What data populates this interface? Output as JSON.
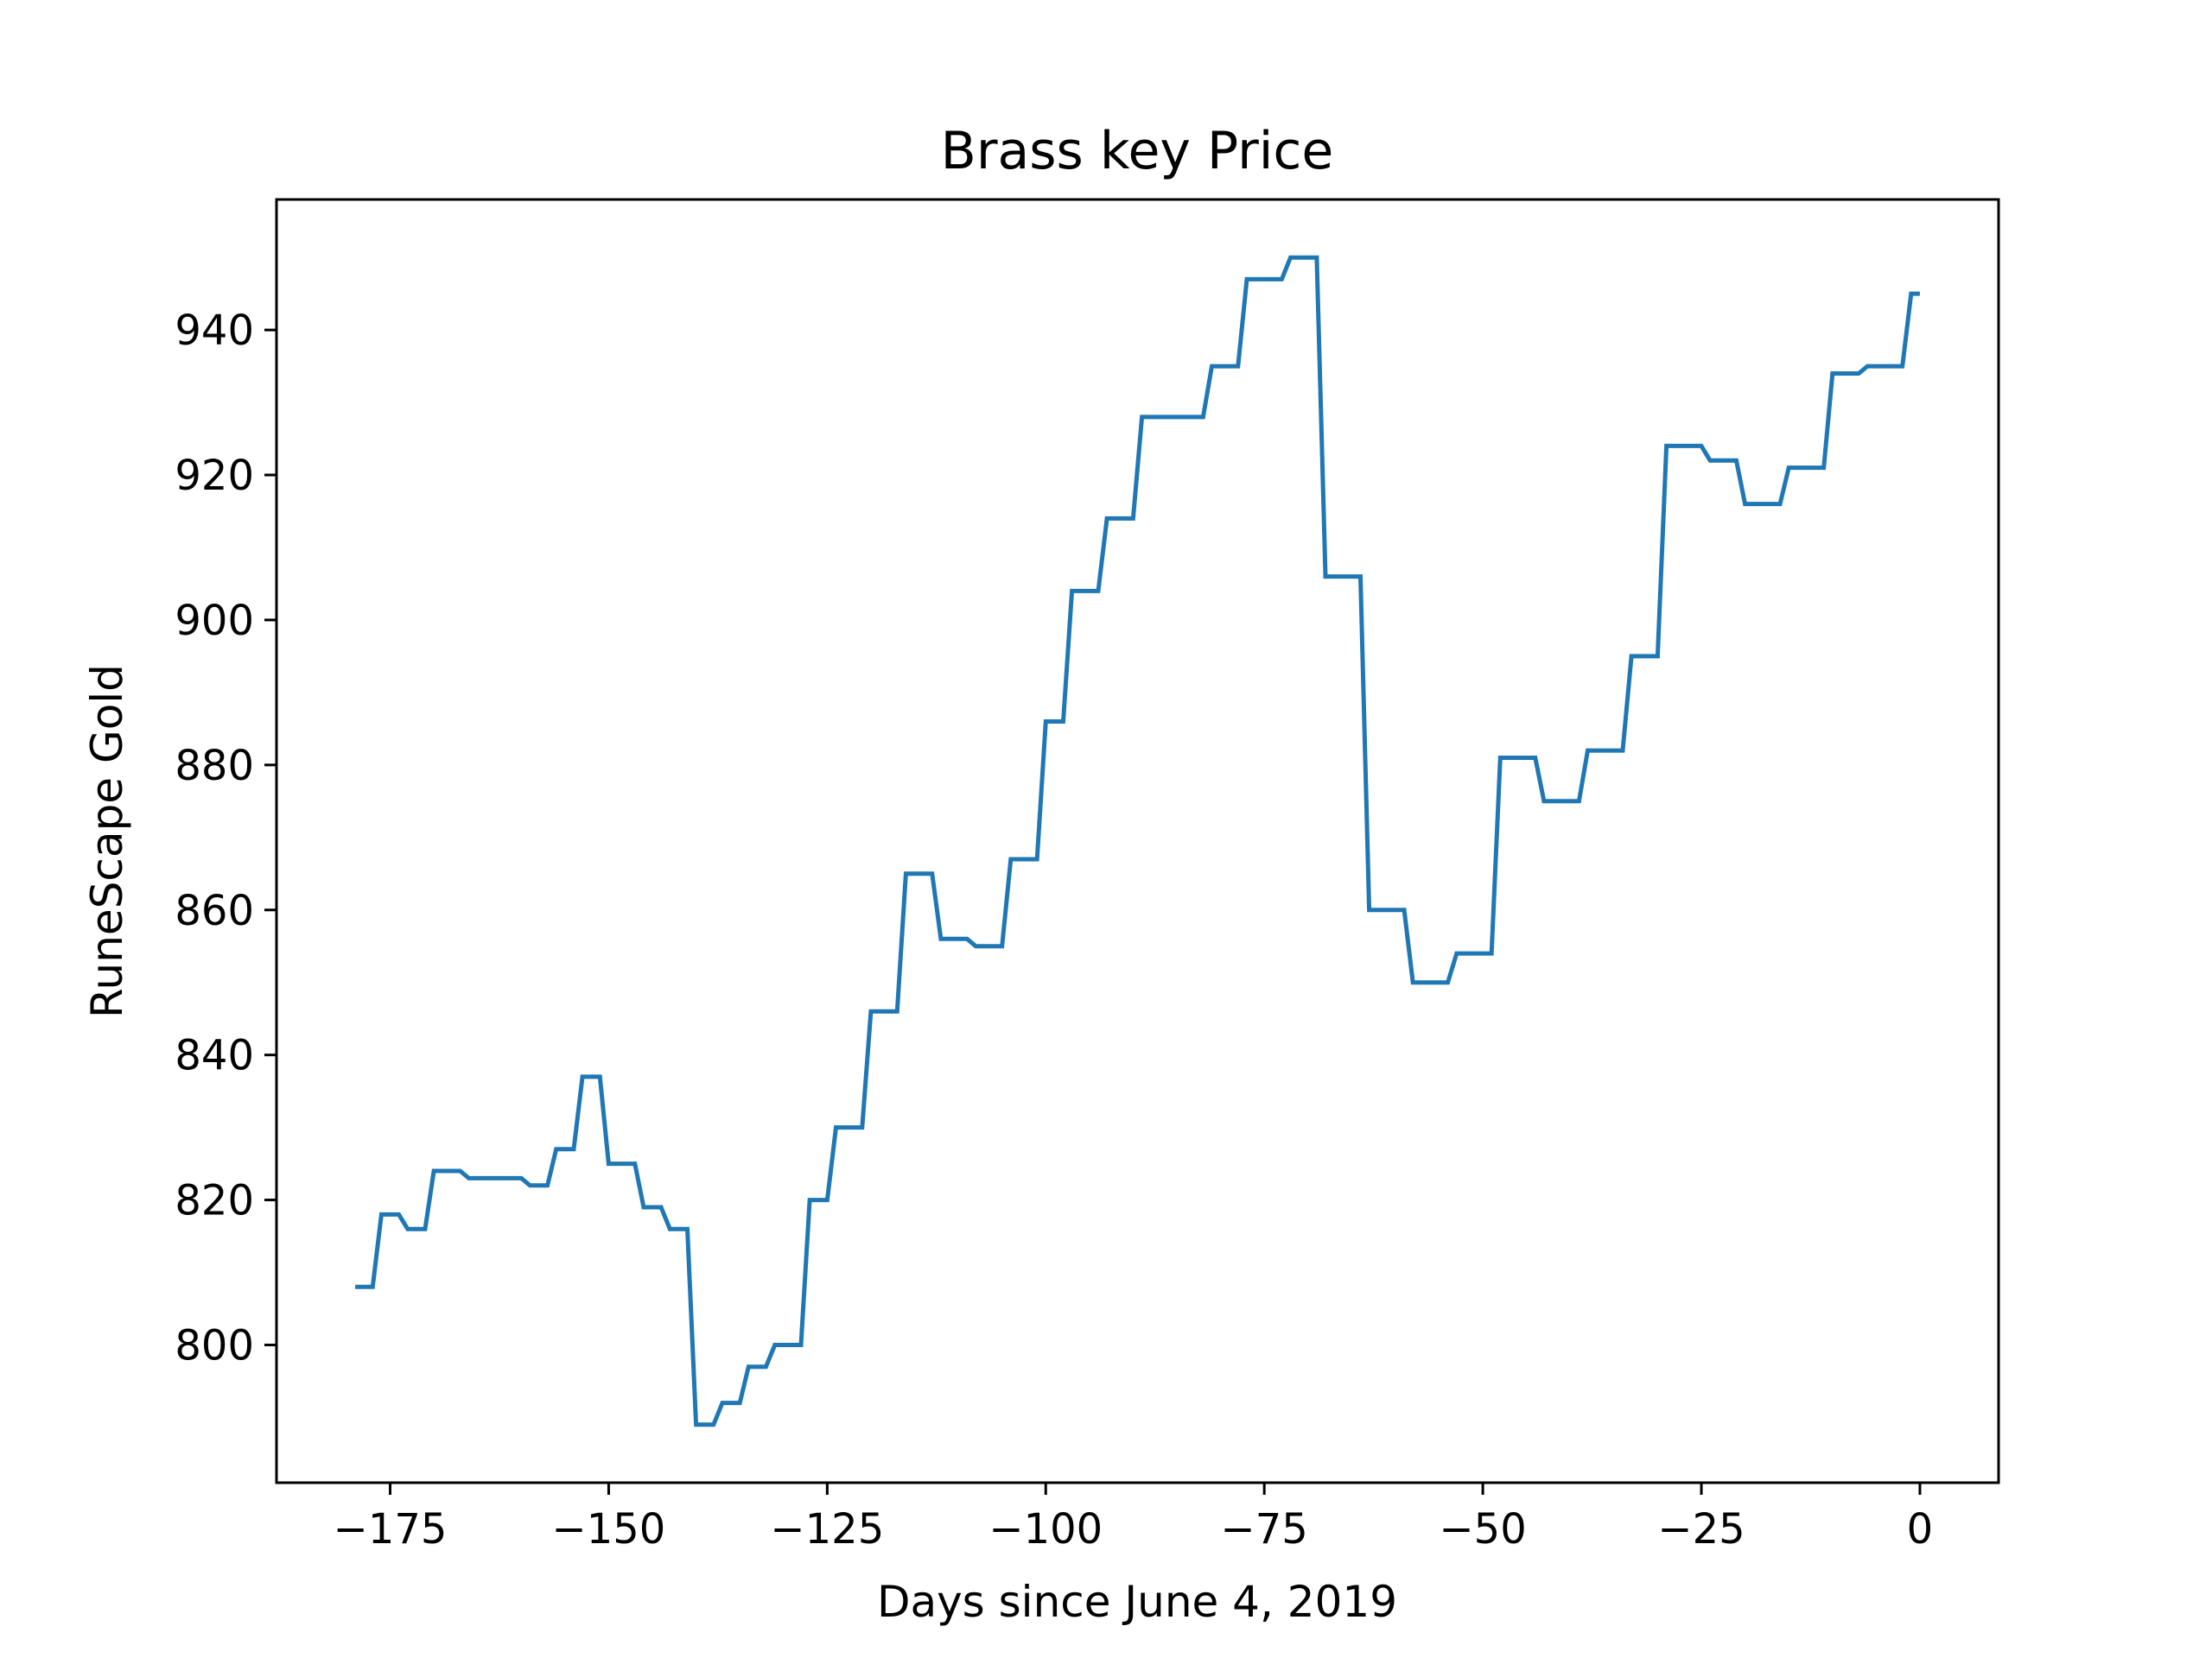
{
  "chart_data": {
    "type": "line",
    "title": "Brass key Price",
    "xlabel": "Days since June 4, 2019",
    "ylabel": "RuneScape Gold",
    "xlim": [
      -188,
      9
    ],
    "ylim": [
      781,
      958
    ],
    "x_ticks": [
      {
        "value": -175,
        "label": "−175"
      },
      {
        "value": -150,
        "label": "−150"
      },
      {
        "value": -125,
        "label": "−125"
      },
      {
        "value": -100,
        "label": "−100"
      },
      {
        "value": -75,
        "label": "−75"
      },
      {
        "value": -50,
        "label": "−50"
      },
      {
        "value": -25,
        "label": "−25"
      },
      {
        "value": 0,
        "label": "0"
      }
    ],
    "y_ticks": [
      {
        "value": 800,
        "label": "800"
      },
      {
        "value": 820,
        "label": "820"
      },
      {
        "value": 840,
        "label": "840"
      },
      {
        "value": 860,
        "label": "860"
      },
      {
        "value": 880,
        "label": "880"
      },
      {
        "value": 900,
        "label": "900"
      },
      {
        "value": 920,
        "label": "920"
      },
      {
        "value": 940,
        "label": "940"
      }
    ],
    "grid": false,
    "line_color": "#1f77b4",
    "series": [
      {
        "points": [
          [
            -179,
            808
          ],
          [
            -177,
            808
          ],
          [
            -176,
            818
          ],
          [
            -174,
            818
          ],
          [
            -173,
            816
          ],
          [
            -171,
            816
          ],
          [
            -170,
            824
          ],
          [
            -167,
            824
          ],
          [
            -166,
            823
          ],
          [
            -160,
            823
          ],
          [
            -159,
            822
          ],
          [
            -157,
            822
          ],
          [
            -156,
            827
          ],
          [
            -154,
            827
          ],
          [
            -153,
            837
          ],
          [
            -151,
            837
          ],
          [
            -150,
            825
          ],
          [
            -147,
            825
          ],
          [
            -146,
            819
          ],
          [
            -144,
            819
          ],
          [
            -143,
            816
          ],
          [
            -141,
            816
          ],
          [
            -140,
            789
          ],
          [
            -138,
            789
          ],
          [
            -137,
            792
          ],
          [
            -135,
            792
          ],
          [
            -134,
            797
          ],
          [
            -132,
            797
          ],
          [
            -131,
            800
          ],
          [
            -128,
            800
          ],
          [
            -127,
            820
          ],
          [
            -125,
            820
          ],
          [
            -124,
            830
          ],
          [
            -121,
            830
          ],
          [
            -120,
            846
          ],
          [
            -117,
            846
          ],
          [
            -116,
            865
          ],
          [
            -113,
            865
          ],
          [
            -112,
            856
          ],
          [
            -109,
            856
          ],
          [
            -108,
            855
          ],
          [
            -105,
            855
          ],
          [
            -104,
            867
          ],
          [
            -101,
            867
          ],
          [
            -100,
            886
          ],
          [
            -98,
            886
          ],
          [
            -97,
            904
          ],
          [
            -94,
            904
          ],
          [
            -93,
            914
          ],
          [
            -90,
            914
          ],
          [
            -89,
            928
          ],
          [
            -82,
            928
          ],
          [
            -81,
            935
          ],
          [
            -78,
            935
          ],
          [
            -77,
            947
          ],
          [
            -73,
            947
          ],
          [
            -72,
            950
          ],
          [
            -69,
            950
          ],
          [
            -68,
            906
          ],
          [
            -64,
            906
          ],
          [
            -63,
            860
          ],
          [
            -59,
            860
          ],
          [
            -58,
            850
          ],
          [
            -54,
            850
          ],
          [
            -53,
            854
          ],
          [
            -49,
            854
          ],
          [
            -48,
            881
          ],
          [
            -44,
            881
          ],
          [
            -43,
            875
          ],
          [
            -39,
            875
          ],
          [
            -38,
            882
          ],
          [
            -34,
            882
          ],
          [
            -33,
            895
          ],
          [
            -30,
            895
          ],
          [
            -29,
            924
          ],
          [
            -25,
            924
          ],
          [
            -24,
            922
          ],
          [
            -21,
            922
          ],
          [
            -20,
            916
          ],
          [
            -16,
            916
          ],
          [
            -15,
            921
          ],
          [
            -11,
            921
          ],
          [
            -10,
            934
          ],
          [
            -7,
            934
          ],
          [
            -6,
            935
          ],
          [
            -2,
            935
          ],
          [
            -1,
            945
          ],
          [
            0,
            945
          ]
        ]
      }
    ]
  }
}
